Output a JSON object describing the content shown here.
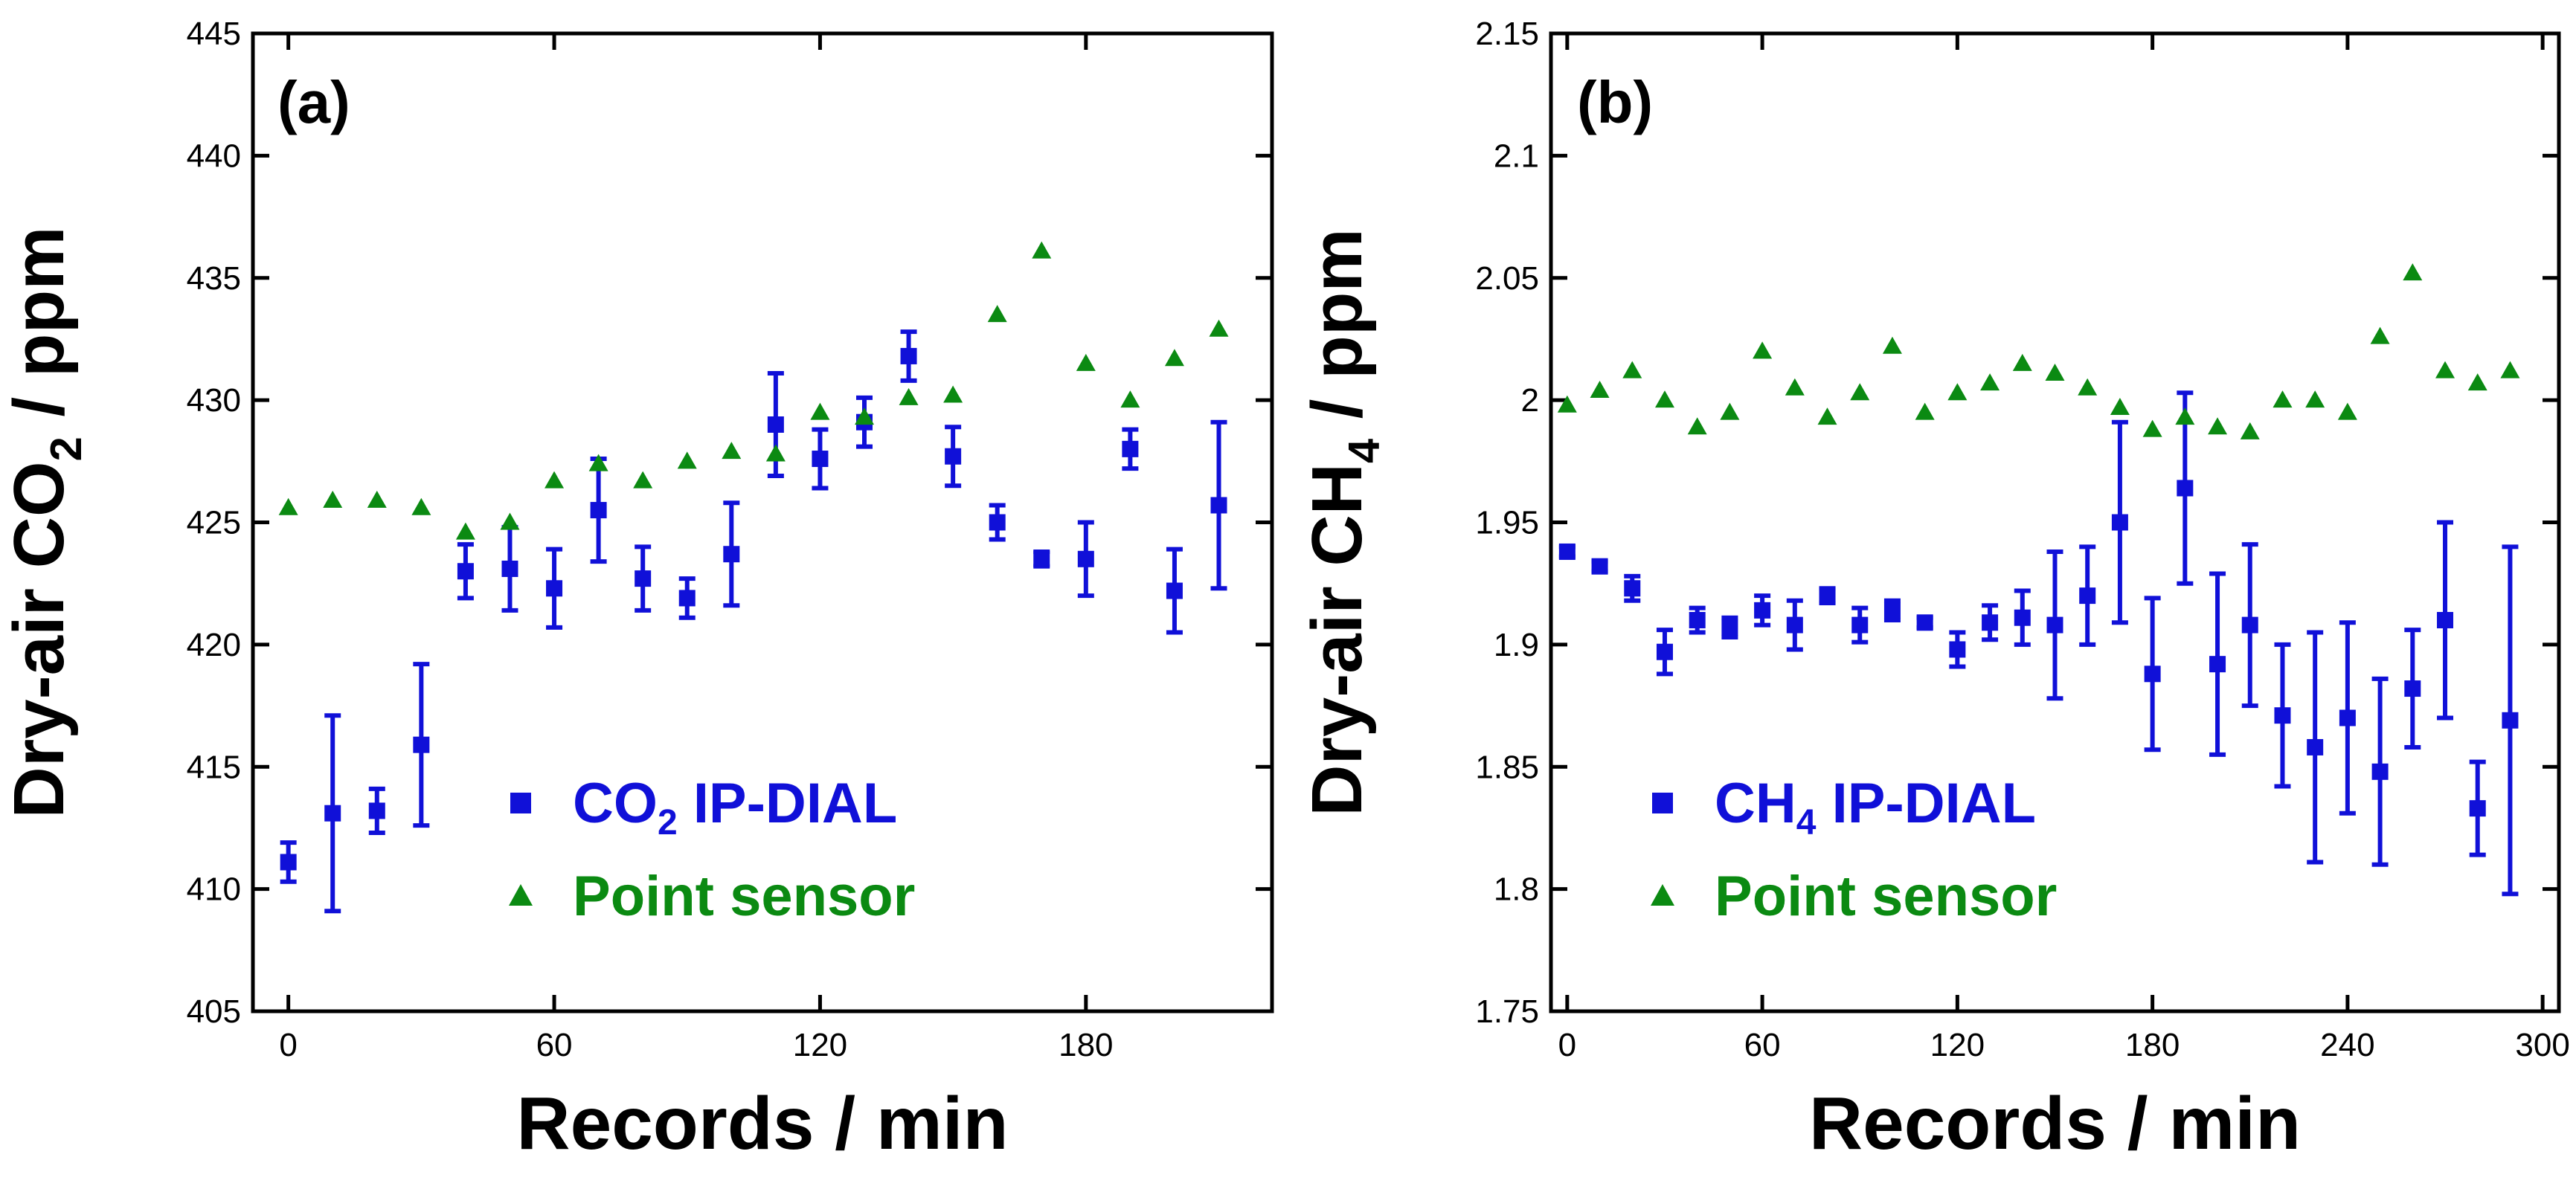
{
  "colors": {
    "dial": "#1010d8",
    "sensor": "#0b8a12",
    "axis": "#000000"
  },
  "chart_data": [
    {
      "type": "scatter",
      "panel_label": "(a)",
      "ylabel_main": "Dry-air CO",
      "ylabel_sub": "2",
      "ylabel_tail": " / ppm",
      "xlabel": "Records / min",
      "xlim": [
        -8,
        222
      ],
      "ylim": [
        405,
        445
      ],
      "xticks": [
        0,
        60,
        120,
        180
      ],
      "xtick_labels": [
        "0",
        "60",
        "120",
        "180"
      ],
      "yticks": [
        405,
        410,
        415,
        420,
        425,
        430,
        435,
        440,
        445
      ],
      "ytick_labels": [
        "405",
        "410",
        "415",
        "420",
        "425",
        "430",
        "435",
        "440",
        "445"
      ],
      "legend": [
        {
          "marker": "square",
          "color_key": "dial",
          "main": "CO",
          "sub": "2",
          "tail": " IP-DIAL"
        },
        {
          "marker": "triangle",
          "color_key": "sensor",
          "main": "Point sensor",
          "sub": "",
          "tail": ""
        }
      ],
      "series": [
        {
          "name": "CO2 IP-DIAL",
          "marker": "square",
          "color_key": "dial",
          "x": [
            0,
            10,
            20,
            30,
            40,
            50,
            60,
            70,
            80,
            90,
            100,
            110,
            120,
            130,
            140,
            150,
            160,
            170,
            180,
            190,
            200,
            210
          ],
          "y": [
            411.1,
            413.1,
            413.2,
            415.9,
            423.0,
            423.1,
            422.3,
            425.5,
            422.7,
            421.9,
            423.7,
            429.0,
            427.6,
            429.1,
            431.8,
            427.7,
            425.0,
            423.5,
            423.5,
            428.0,
            422.2,
            425.7
          ],
          "err": [
            0.8,
            4.0,
            0.9,
            3.3,
            1.1,
            1.7,
            1.6,
            2.1,
            1.3,
            0.8,
            2.1,
            2.1,
            1.2,
            1.0,
            1.0,
            1.2,
            0.7,
            0.3,
            1.5,
            0.8,
            1.7,
            3.4
          ]
        },
        {
          "name": "Point sensor",
          "marker": "triangle",
          "color_key": "sensor",
          "x": [
            0,
            10,
            20,
            30,
            40,
            50,
            60,
            70,
            80,
            90,
            100,
            110,
            120,
            130,
            140,
            150,
            160,
            170,
            180,
            190,
            200,
            210
          ],
          "y": [
            425.6,
            425.9,
            425.9,
            425.6,
            424.6,
            425.0,
            426.7,
            427.4,
            426.7,
            427.5,
            427.9,
            427.8,
            429.5,
            429.3,
            430.1,
            430.2,
            433.5,
            436.1,
            431.5,
            430.0,
            431.7,
            432.9
          ]
        }
      ]
    },
    {
      "type": "scatter",
      "panel_label": "(b)",
      "ylabel_main": "Dry-air CH",
      "ylabel_sub": "4",
      "ylabel_tail": "  / ppm",
      "xlabel": "Records / min",
      "xlim": [
        -5,
        305
      ],
      "ylim": [
        1.75,
        2.15
      ],
      "xticks": [
        0,
        60,
        120,
        180,
        240,
        300
      ],
      "xtick_labels": [
        "0",
        "60",
        "120",
        "180",
        "240",
        "300"
      ],
      "yticks": [
        1.75,
        1.8,
        1.85,
        1.9,
        1.95,
        2.0,
        2.05,
        2.1,
        2.15
      ],
      "ytick_labels": [
        "1.75",
        "1.8",
        "1.85",
        "1.9",
        "1.95",
        "2",
        "2.05",
        "2.1",
        "2.15"
      ],
      "legend": [
        {
          "marker": "square",
          "color_key": "dial",
          "main": "CH",
          "sub": "4",
          "tail": " IP-DIAL"
        },
        {
          "marker": "triangle",
          "color_key": "sensor",
          "main": "Point sensor",
          "sub": "",
          "tail": ""
        }
      ],
      "series": [
        {
          "name": "CH4 IP-DIAL",
          "marker": "square",
          "color_key": "dial",
          "x": [
            0,
            10,
            20,
            30,
            40,
            50,
            60,
            70,
            80,
            90,
            100,
            110,
            120,
            130,
            140,
            150,
            160,
            170,
            180,
            190,
            200,
            210,
            220,
            230,
            240,
            250,
            260,
            270,
            280,
            290
          ],
          "y": [
            1.938,
            1.932,
            1.923,
            1.897,
            1.91,
            1.907,
            1.914,
            1.908,
            1.92,
            1.908,
            1.914,
            1.909,
            1.898,
            1.909,
            1.911,
            1.908,
            1.92,
            1.95,
            1.888,
            1.964,
            1.892,
            1.908,
            1.871,
            1.858,
            1.87,
            1.848,
            1.882,
            1.91,
            1.833,
            1.869
          ],
          "err": [
            0.002,
            0.002,
            0.005,
            0.009,
            0.005,
            0.004,
            0.006,
            0.01,
            0.003,
            0.007,
            0.004,
            0.002,
            0.007,
            0.007,
            0.011,
            0.03,
            0.02,
            0.041,
            0.031,
            0.039,
            0.037,
            0.033,
            0.029,
            0.047,
            0.039,
            0.038,
            0.024,
            0.04,
            0.019,
            0.071
          ]
        },
        {
          "name": "Point sensor",
          "marker": "triangle",
          "color_key": "sensor",
          "x": [
            0,
            10,
            20,
            30,
            40,
            50,
            60,
            70,
            80,
            90,
            100,
            110,
            120,
            130,
            140,
            150,
            160,
            170,
            180,
            190,
            200,
            210,
            220,
            230,
            240,
            250,
            260,
            270,
            280,
            290
          ],
          "y": [
            1.998,
            2.004,
            2.012,
            2.0,
            1.989,
            1.995,
            2.02,
            2.005,
            1.993,
            2.003,
            2.022,
            1.995,
            2.003,
            2.007,
            2.015,
            2.011,
            2.005,
            1.997,
            1.988,
            1.993,
            1.989,
            1.987,
            2.0,
            2.0,
            1.995,
            2.026,
            2.052,
            2.012,
            2.007,
            2.012
          ]
        }
      ]
    }
  ]
}
